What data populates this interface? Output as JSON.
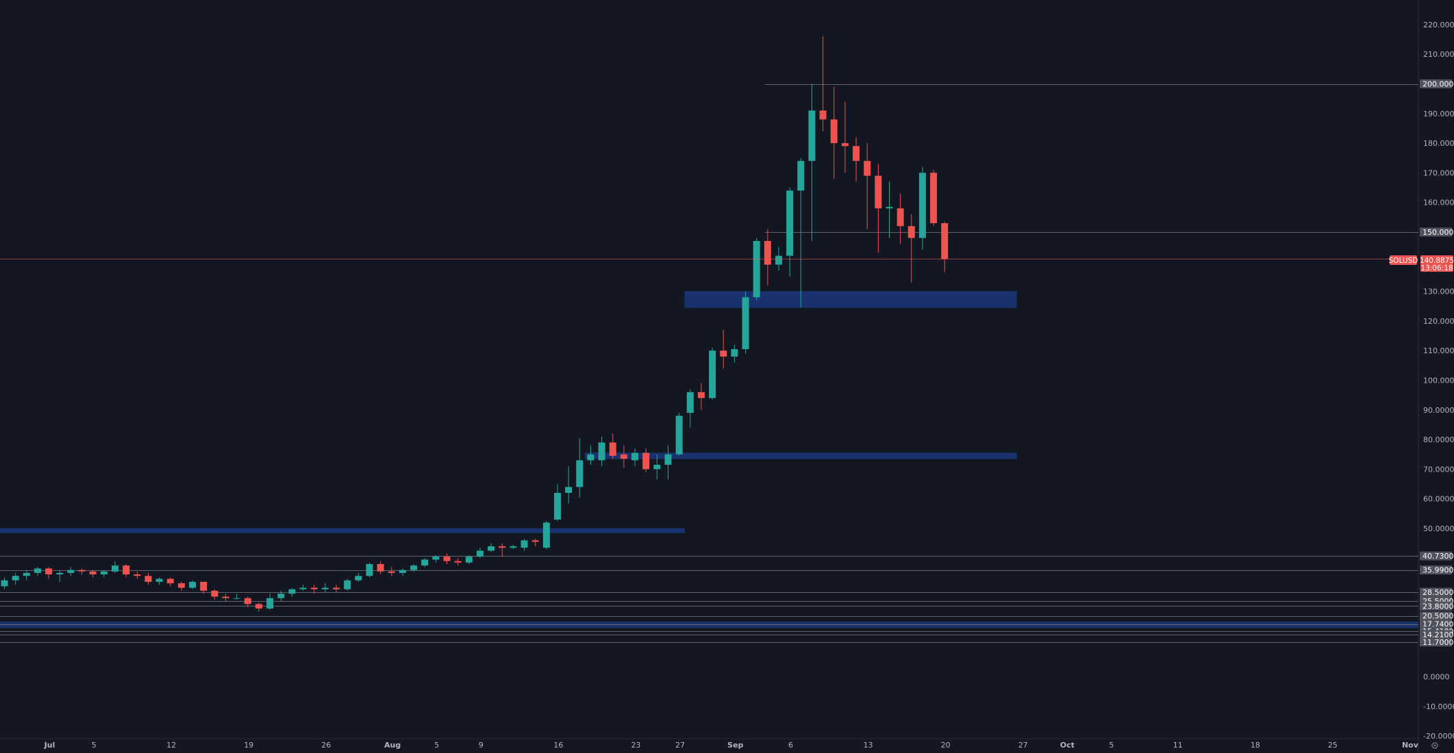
{
  "chart_data": {
    "type": "candlestick",
    "symbol": "SOLUSD",
    "last_price": "140.8875",
    "countdown": "13:06:18",
    "ylim": [
      -25,
      225
    ],
    "y_ticks": [
      "220.0000",
      "210.0000",
      "190.0000",
      "180.0000",
      "170.0000",
      "160.0000",
      "130.0000",
      "120.0000",
      "110.0000",
      "100.0000",
      "90.0000",
      "80.0000",
      "70.0000",
      "60.0000",
      "50.0000",
      "0.0000",
      "-10.0000",
      "-20.0000"
    ],
    "price_labels": [
      {
        "text": "200.0000",
        "value": 200
      },
      {
        "text": "150.0000",
        "value": 150
      },
      {
        "text": "40.7300",
        "value": 40.73
      },
      {
        "text": "35.9900",
        "value": 35.99
      },
      {
        "text": "28.5000",
        "value": 28.5
      },
      {
        "text": "25.5000",
        "value": 25.5
      },
      {
        "text": "23.8000",
        "value": 23.8
      },
      {
        "text": "20.5000",
        "value": 20.5
      },
      {
        "text": "17.7400",
        "value": 17.74
      },
      {
        "text": "15.4100",
        "value": 15.41
      },
      {
        "text": "14.2100",
        "value": 14.21
      },
      {
        "text": "11.7000",
        "value": 11.7
      }
    ],
    "x_ticks": [
      {
        "label": "Jul",
        "index": 0,
        "bold": true
      },
      {
        "label": "5",
        "index": 4
      },
      {
        "label": "12",
        "index": 11
      },
      {
        "label": "19",
        "index": 18
      },
      {
        "label": "26",
        "index": 25
      },
      {
        "label": "Aug",
        "index": 31,
        "bold": true
      },
      {
        "label": "5",
        "index": 35
      },
      {
        "label": "9",
        "index": 39
      },
      {
        "label": "16",
        "index": 46
      },
      {
        "label": "23",
        "index": 53
      },
      {
        "label": "27",
        "index": 57
      },
      {
        "label": "Sep",
        "index": 62,
        "bold": true
      },
      {
        "label": "6",
        "index": 67
      },
      {
        "label": "13",
        "index": 74
      },
      {
        "label": "20",
        "index": 81
      },
      {
        "label": "27",
        "index": 88
      },
      {
        "label": "Oct",
        "index": 92,
        "bold": true
      },
      {
        "label": "5",
        "index": 96
      },
      {
        "label": "11",
        "index": 102
      },
      {
        "label": "18",
        "index": 109
      },
      {
        "label": "25",
        "index": 116
      },
      {
        "label": "Nov",
        "index": 123,
        "bold": true
      }
    ],
    "zones": [
      {
        "from_index": 61.5,
        "to_index": 91.5,
        "low": 124.5,
        "high": 130
      },
      {
        "from_index": 52.5,
        "to_index": 91.5,
        "low": 73.5,
        "high": 75.5
      },
      {
        "from_index": -5,
        "to_index": 61.5,
        "low": 48.5,
        "high": 50
      },
      {
        "from_index": -5,
        "to_index": 130,
        "low": 16.5,
        "high": 18.5
      }
    ],
    "candles": [
      {
        "o": 30.5,
        "h": 33.5,
        "l": 29.5,
        "c": 32.5
      },
      {
        "o": 32.5,
        "h": 35.0,
        "l": 31.0,
        "c": 34.0
      },
      {
        "o": 34.0,
        "h": 36.0,
        "l": 32.5,
        "c": 35.0
      },
      {
        "o": 35.0,
        "h": 37.0,
        "l": 34.0,
        "c": 36.5
      },
      {
        "o": 36.5,
        "h": 37.0,
        "l": 33.0,
        "c": 34.5
      },
      {
        "o": 34.5,
        "h": 36.0,
        "l": 32.0,
        "c": 35.0
      },
      {
        "o": 35.0,
        "h": 37.0,
        "l": 34.0,
        "c": 36.0
      },
      {
        "o": 36.0,
        "h": 36.5,
        "l": 34.5,
        "c": 35.5
      },
      {
        "o": 35.5,
        "h": 36.0,
        "l": 33.5,
        "c": 34.5
      },
      {
        "o": 34.5,
        "h": 36.0,
        "l": 33.5,
        "c": 35.5
      },
      {
        "o": 35.5,
        "h": 39.0,
        "l": 35.0,
        "c": 37.5
      },
      {
        "o": 37.5,
        "h": 38.0,
        "l": 33.5,
        "c": 34.5
      },
      {
        "o": 34.5,
        "h": 35.5,
        "l": 33.0,
        "c": 34.0
      },
      {
        "o": 34.0,
        "h": 35.0,
        "l": 31.0,
        "c": 32.0
      },
      {
        "o": 32.0,
        "h": 33.5,
        "l": 31.0,
        "c": 33.0
      },
      {
        "o": 33.0,
        "h": 33.5,
        "l": 30.5,
        "c": 31.5
      },
      {
        "o": 31.5,
        "h": 32.0,
        "l": 29.0,
        "c": 30.0
      },
      {
        "o": 30.0,
        "h": 32.5,
        "l": 29.5,
        "c": 32.0
      },
      {
        "o": 32.0,
        "h": 32.0,
        "l": 28.0,
        "c": 29.0
      },
      {
        "o": 29.0,
        "h": 29.5,
        "l": 26.0,
        "c": 27.0
      },
      {
        "o": 27.0,
        "h": 28.0,
        "l": 25.5,
        "c": 26.5
      },
      {
        "o": 26.5,
        "h": 28.0,
        "l": 26.0,
        "c": 26.5
      },
      {
        "o": 26.5,
        "h": 27.0,
        "l": 23.5,
        "c": 24.5
      },
      {
        "o": 24.5,
        "h": 25.0,
        "l": 22.0,
        "c": 23.0
      },
      {
        "o": 23.0,
        "h": 28.0,
        "l": 22.5,
        "c": 26.5
      },
      {
        "o": 26.5,
        "h": 29.0,
        "l": 25.5,
        "c": 28.0
      },
      {
        "o": 28.0,
        "h": 30.0,
        "l": 27.0,
        "c": 29.5
      },
      {
        "o": 29.5,
        "h": 31.0,
        "l": 29.0,
        "c": 30.0
      },
      {
        "o": 30.0,
        "h": 31.0,
        "l": 28.0,
        "c": 29.5
      },
      {
        "o": 29.5,
        "h": 31.5,
        "l": 28.5,
        "c": 30.0
      },
      {
        "o": 30.0,
        "h": 31.0,
        "l": 28.5,
        "c": 29.5
      },
      {
        "o": 29.5,
        "h": 33.0,
        "l": 29.0,
        "c": 32.5
      },
      {
        "o": 32.5,
        "h": 35.0,
        "l": 32.0,
        "c": 34.0
      },
      {
        "o": 34.0,
        "h": 38.5,
        "l": 33.5,
        "c": 38.0
      },
      {
        "o": 38.0,
        "h": 39.0,
        "l": 34.5,
        "c": 35.5
      },
      {
        "o": 35.5,
        "h": 37.0,
        "l": 34.0,
        "c": 35.0
      },
      {
        "o": 35.0,
        "h": 36.5,
        "l": 34.0,
        "c": 36.0
      },
      {
        "o": 36.0,
        "h": 38.0,
        "l": 35.5,
        "c": 37.5
      },
      {
        "o": 37.5,
        "h": 40.0,
        "l": 37.0,
        "c": 39.5
      },
      {
        "o": 39.5,
        "h": 41.0,
        "l": 38.5,
        "c": 40.5
      },
      {
        "o": 40.5,
        "h": 41.5,
        "l": 38.0,
        "c": 39.0
      },
      {
        "o": 39.0,
        "h": 40.0,
        "l": 37.5,
        "c": 38.5
      },
      {
        "o": 38.5,
        "h": 41.0,
        "l": 38.0,
        "c": 40.5
      },
      {
        "o": 40.5,
        "h": 43.5,
        "l": 40.0,
        "c": 42.5
      },
      {
        "o": 42.5,
        "h": 45.0,
        "l": 42.0,
        "c": 44.0
      },
      {
        "o": 44.0,
        "h": 45.0,
        "l": 40.5,
        "c": 43.5
      },
      {
        "o": 43.5,
        "h": 44.5,
        "l": 43.0,
        "c": 44.0
      },
      {
        "o": 43.5,
        "h": 46.5,
        "l": 42.5,
        "c": 46.0
      },
      {
        "o": 46.0,
        "h": 46.5,
        "l": 44.0,
        "c": 45.5
      },
      {
        "o": 43.5,
        "h": 52.5,
        "l": 43.0,
        "c": 52.0
      },
      {
        "o": 53.0,
        "h": 65.0,
        "l": 52.5,
        "c": 62.0
      },
      {
        "o": 62.0,
        "h": 71.0,
        "l": 58.5,
        "c": 64.0
      },
      {
        "o": 64.0,
        "h": 80.5,
        "l": 60.5,
        "c": 73.0
      },
      {
        "o": 73.0,
        "h": 78.0,
        "l": 71.5,
        "c": 75.0
      },
      {
        "o": 73.0,
        "h": 81.0,
        "l": 71.0,
        "c": 79.0
      },
      {
        "o": 79.0,
        "h": 82.0,
        "l": 73.5,
        "c": 74.5
      },
      {
        "o": 75.0,
        "h": 78.0,
        "l": 70.5,
        "c": 73.5
      },
      {
        "o": 73.0,
        "h": 77.0,
        "l": 71.0,
        "c": 75.5
      },
      {
        "o": 75.5,
        "h": 77.0,
        "l": 69.0,
        "c": 70.0
      },
      {
        "o": 70.0,
        "h": 75.0,
        "l": 66.5,
        "c": 71.5
      },
      {
        "o": 71.5,
        "h": 78.0,
        "l": 66.5,
        "c": 75.0
      },
      {
        "o": 75.0,
        "h": 89.0,
        "l": 74.5,
        "c": 88.0
      },
      {
        "o": 89.0,
        "h": 97.0,
        "l": 84.0,
        "c": 96.0
      },
      {
        "o": 96.0,
        "h": 99.0,
        "l": 90.0,
        "c": 94.0
      },
      {
        "o": 94.0,
        "h": 111.0,
        "l": 93.5,
        "c": 110.0
      },
      {
        "o": 110.0,
        "h": 117.0,
        "l": 104.0,
        "c": 108.0
      },
      {
        "o": 108.0,
        "h": 112.0,
        "l": 106.0,
        "c": 110.5
      },
      {
        "o": 110.5,
        "h": 130.0,
        "l": 109.0,
        "c": 128.0
      },
      {
        "o": 128.0,
        "h": 148.0,
        "l": 127.0,
        "c": 147.0
      },
      {
        "o": 147.0,
        "h": 151.0,
        "l": 132.0,
        "c": 139.0
      },
      {
        "o": 139.0,
        "h": 145.0,
        "l": 137.0,
        "c": 142.0
      },
      {
        "o": 142.0,
        "h": 165.0,
        "l": 135.0,
        "c": 164.0
      },
      {
        "o": 164.0,
        "h": 175.0,
        "l": 124.5,
        "c": 174.0
      },
      {
        "o": 174.0,
        "h": 200.0,
        "l": 147.0,
        "c": 191.0
      },
      {
        "o": 191.0,
        "h": 216.0,
        "l": 184.0,
        "c": 188.0
      },
      {
        "o": 188.0,
        "h": 199.0,
        "l": 168.0,
        "c": 180.0
      },
      {
        "o": 180.0,
        "h": 194.0,
        "l": 170.0,
        "c": 179.0
      },
      {
        "o": 179.0,
        "h": 182.0,
        "l": 167.0,
        "c": 174.0
      },
      {
        "o": 174.0,
        "h": 180.0,
        "l": 151.0,
        "c": 169.0
      },
      {
        "o": 169.0,
        "h": 173.0,
        "l": 143.0,
        "c": 158.0
      },
      {
        "o": 158.0,
        "h": 167.0,
        "l": 148.0,
        "c": 158.5
      },
      {
        "o": 158.0,
        "h": 163.0,
        "l": 146.0,
        "c": 152.0
      },
      {
        "o": 152.0,
        "h": 156.0,
        "l": 133.0,
        "c": 148.0
      },
      {
        "o": 148.0,
        "h": 172.0,
        "l": 144.0,
        "c": 170.0
      },
      {
        "o": 170.0,
        "h": 171.0,
        "l": 152.0,
        "c": 153.0
      },
      {
        "o": 153.0,
        "h": 153.5,
        "l": 136.5,
        "c": 140.9
      }
    ]
  }
}
